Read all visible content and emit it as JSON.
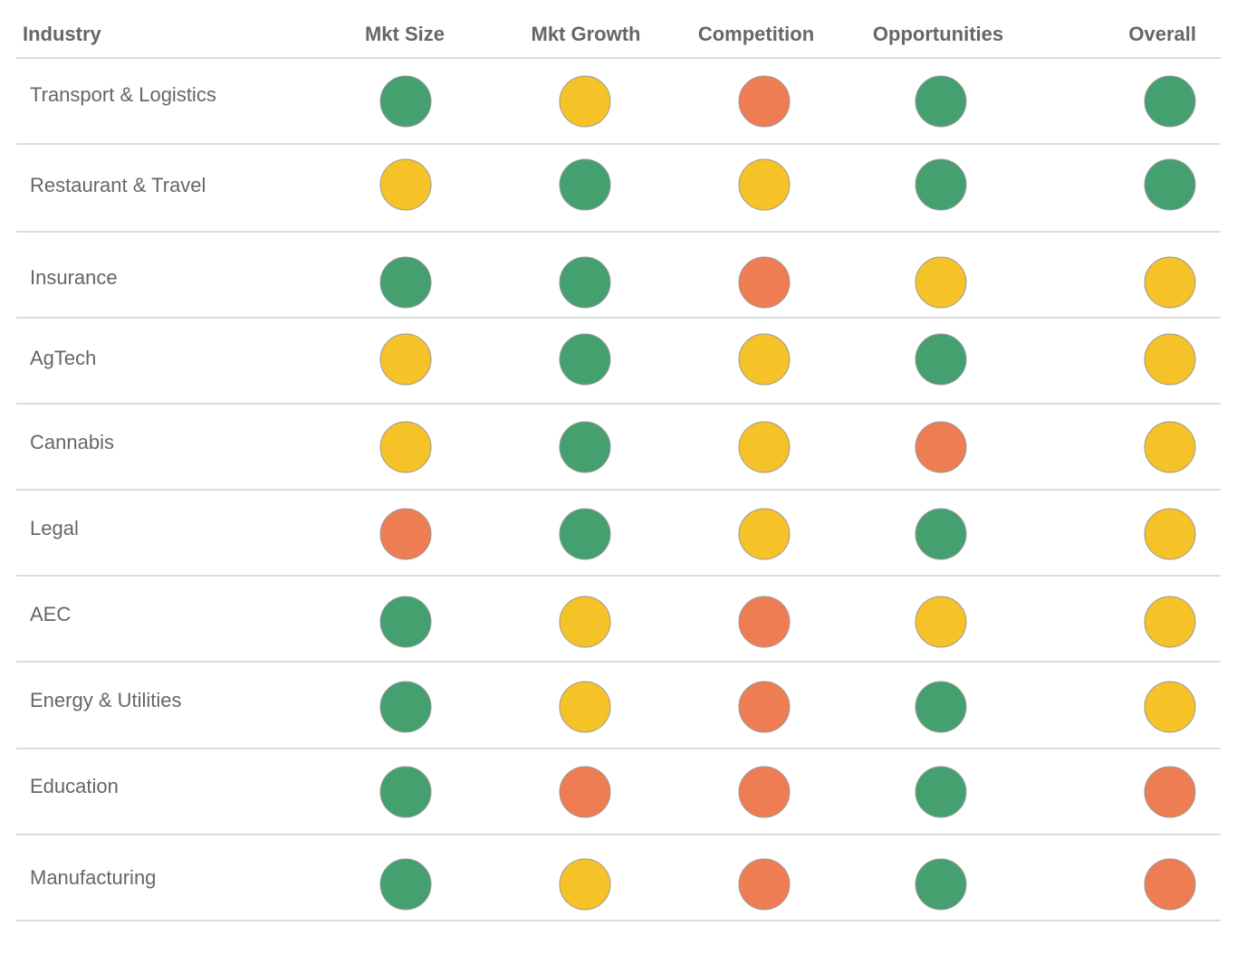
{
  "table": {
    "header": [
      "Industry",
      "Mkt Size",
      "Mkt Growth",
      "Competition",
      "Opportunities",
      "Overall"
    ],
    "rows": [
      [
        "Transport & Logistics",
        "#45a06f",
        "#f5c228",
        "#ef7d54",
        "#45a06f",
        "#45a06f"
      ],
      [
        "Restaurant & Travel",
        "#f5c228",
        "#45a06f",
        "#f5c228",
        "#45a06f",
        "#45a06f"
      ],
      [
        "Insurance",
        "#45a06f",
        "#45a06f",
        "#ef7d54",
        "#f5c228",
        "#f5c228"
      ],
      [
        "AgTech",
        "#f5c228",
        "#45a06f",
        "#f5c228",
        "#45a06f",
        "#f5c228"
      ],
      [
        "Cannabis",
        "#f5c228",
        "#45a06f",
        "#f5c228",
        "#ef7d54",
        "#f5c228"
      ],
      [
        "Legal",
        "#ef7d54",
        "#45a06f",
        "#f5c228",
        "#45a06f",
        "#f5c228"
      ],
      [
        "AEC",
        "#45a06f",
        "#f5c228",
        "#ef7d54",
        "#f5c228",
        "#f5c228"
      ],
      [
        "Energy & Utilities",
        "#45a06f",
        "#f5c228",
        "#ef7d54",
        "#45a06f",
        "#f5c228"
      ],
      [
        "Education",
        "#45a06f",
        "#ef7d54",
        "#ef7d54",
        "#45a06f",
        "#ef7d54"
      ],
      [
        "Manufacturing",
        "#45a06f",
        "#f5c228",
        "#ef7d54",
        "#45a06f",
        "#ef7d54"
      ]
    ]
  }
}
